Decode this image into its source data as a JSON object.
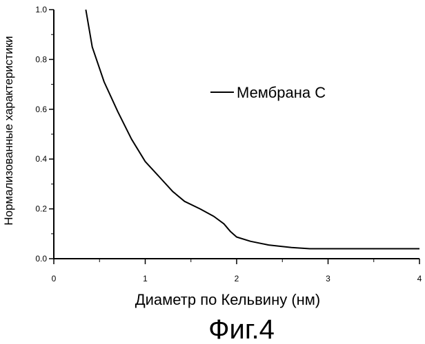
{
  "chart_data": {
    "type": "line",
    "title": "",
    "xlabel": "Диаметр по Кельвину (нм)",
    "ylabel": "Нормализованные характеристики",
    "xlim": [
      0,
      4
    ],
    "ylim": [
      0,
      1.0
    ],
    "x_ticks": [
      "0",
      "1",
      "2",
      "3",
      "4"
    ],
    "y_ticks": [
      "0.0",
      "0.2",
      "0.4",
      "0.6",
      "0.8",
      "1.0"
    ],
    "grid": false,
    "legend_position": "top-right",
    "series": [
      {
        "name": "Мембрана С",
        "color": "#000000",
        "x": [
          0.35,
          0.42,
          0.55,
          0.7,
          0.85,
          1.0,
          1.15,
          1.3,
          1.43,
          1.6,
          1.75,
          1.86,
          1.93,
          2.0,
          2.15,
          2.35,
          2.6,
          2.8,
          3.0,
          3.5,
          4.0
        ],
        "y": [
          1.0,
          0.85,
          0.71,
          0.59,
          0.48,
          0.39,
          0.33,
          0.27,
          0.23,
          0.2,
          0.17,
          0.14,
          0.11,
          0.087,
          0.07,
          0.055,
          0.045,
          0.04,
          0.04,
          0.04,
          0.04
        ]
      }
    ]
  },
  "caption": "Фиг.4"
}
